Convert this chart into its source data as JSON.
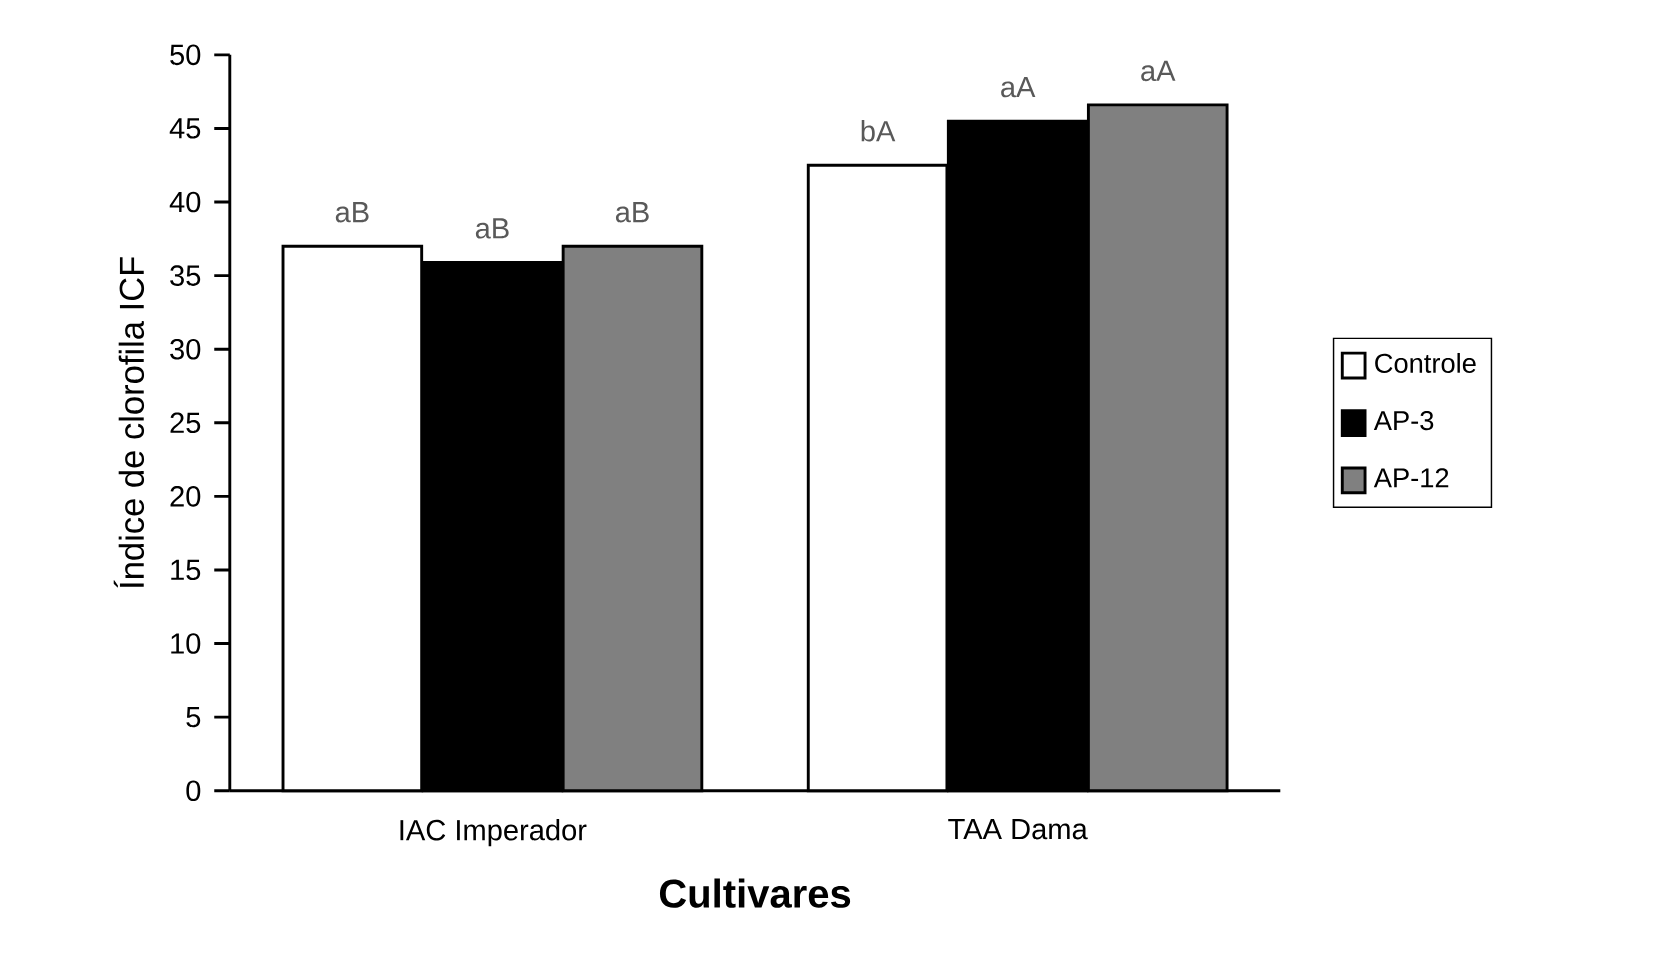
{
  "chart_data": {
    "type": "bar",
    "xlabel": "Cultivares",
    "ylabel": "Índice de clorofila ICF",
    "categories": [
      "IAC Imperador",
      "TAA Dama"
    ],
    "series": [
      {
        "name": "Controle",
        "color": "#ffffff",
        "values": [
          37.0,
          42.5
        ],
        "value_labels": [
          "aB",
          "bA"
        ]
      },
      {
        "name": "AP-3",
        "color": "#000000",
        "values": [
          35.9,
          45.5
        ],
        "value_labels": [
          "aB",
          "aA"
        ]
      },
      {
        "name": "AP-12",
        "color": "#808080",
        "values": [
          37.0,
          46.6
        ],
        "value_labels": [
          "aB",
          "aA"
        ]
      }
    ],
    "ylim": [
      0,
      50
    ],
    "yticks": [
      0,
      5,
      10,
      15,
      20,
      25,
      30,
      35,
      40,
      45,
      50
    ],
    "grid": false,
    "legend": "right"
  }
}
